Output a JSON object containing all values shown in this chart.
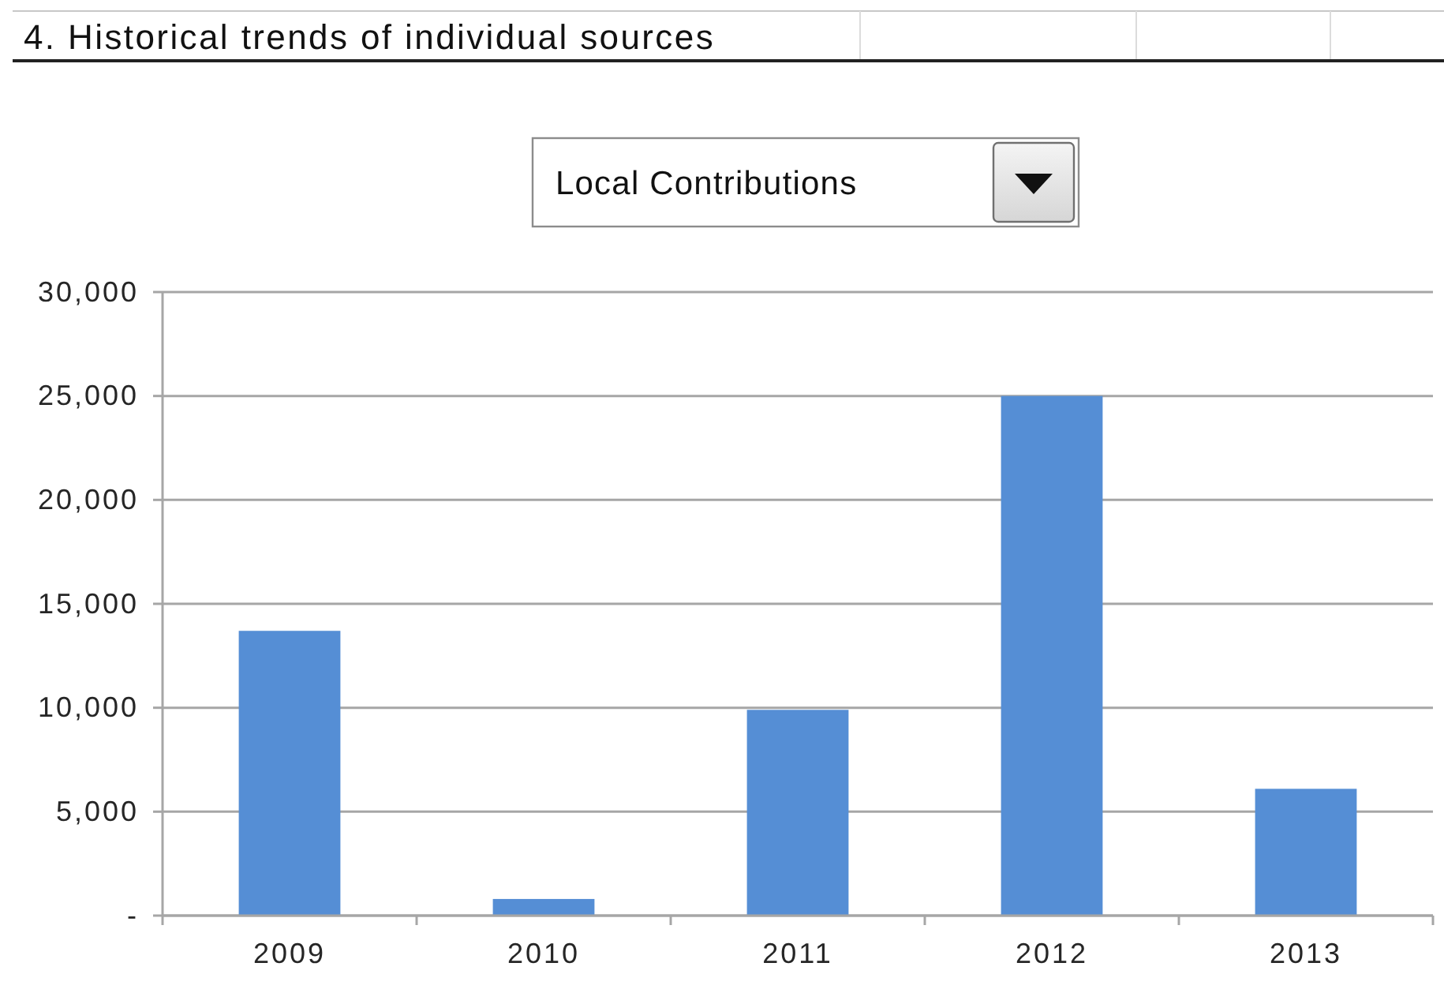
{
  "chart_data": {
    "type": "bar",
    "title": "4. Historical trends of individual sources",
    "subtitle": "Local Contributions",
    "categories": [
      "2009",
      "2010",
      "2011",
      "2012",
      "2013"
    ],
    "values": [
      13700,
      800,
      9900,
      25000,
      6100
    ],
    "color": "#558ed5",
    "ylim": [
      0,
      30000
    ],
    "yticks": [
      {
        "value": 0,
        "label": "-"
      },
      {
        "value": 5000,
        "label": "5,000"
      },
      {
        "value": 10000,
        "label": "10,000"
      },
      {
        "value": 15000,
        "label": "15,000"
      },
      {
        "value": 20000,
        "label": "20,000"
      },
      {
        "value": 25000,
        "label": "25,000"
      },
      {
        "value": 30000,
        "label": "30,000"
      }
    ],
    "grid": "y"
  }
}
